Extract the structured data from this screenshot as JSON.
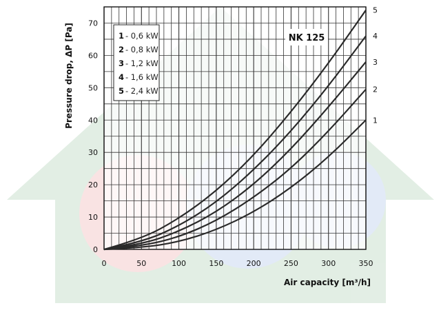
{
  "chart_data": {
    "type": "line",
    "title": "",
    "model_label": "NK 125",
    "xlabel": "Air capacity [m³/h]",
    "ylabel": "Pressure drop, ΔP [Pa]",
    "xlim": [
      0,
      350
    ],
    "ylim": [
      0,
      75
    ],
    "x_ticks": [
      0,
      50,
      100,
      150,
      200,
      250,
      300,
      350
    ],
    "y_ticks": [
      0,
      10,
      20,
      30,
      40,
      50,
      60,
      70
    ],
    "grid": true,
    "legend_position": "top-left",
    "legend": [
      {
        "num": "1",
        "text": "- 0,6  kW"
      },
      {
        "num": "2",
        "text": "- 0,8  kW"
      },
      {
        "num": "3",
        "text": "- 1,2  kW"
      },
      {
        "num": "4",
        "text": "- 1,6  kW"
      },
      {
        "num": "5",
        "text": "- 2,4  kW"
      }
    ],
    "series": [
      {
        "name": "1",
        "x": [
          0,
          50,
          100,
          150,
          200,
          250,
          300,
          350
        ],
        "y": [
          0,
          0.5,
          2.3,
          6.0,
          11.5,
          19.0,
          28.5,
          40.0
        ]
      },
      {
        "name": "2",
        "x": [
          0,
          50,
          100,
          150,
          200,
          250,
          300,
          350
        ],
        "y": [
          0,
          1.0,
          3.8,
          8.8,
          16.0,
          25.0,
          36.5,
          49.5
        ]
      },
      {
        "name": "3",
        "x": [
          0,
          50,
          100,
          150,
          200,
          250,
          300,
          350
        ],
        "y": [
          0,
          1.5,
          5.5,
          11.5,
          20.0,
          31.0,
          44.0,
          58.0
        ]
      },
      {
        "name": "4",
        "x": [
          0,
          50,
          100,
          150,
          200,
          250,
          300,
          350
        ],
        "y": [
          0,
          2.2,
          7.2,
          14.5,
          24.5,
          36.5,
          50.5,
          66.0
        ]
      },
      {
        "name": "5",
        "x": [
          0,
          50,
          100,
          150,
          200,
          250,
          300,
          350
        ],
        "y": [
          0,
          3.2,
          9.5,
          18.0,
          29.0,
          42.5,
          57.5,
          74.0
        ]
      }
    ]
  }
}
